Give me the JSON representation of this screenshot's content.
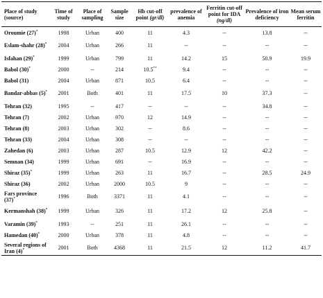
{
  "headers": {
    "place": "Place of study (source)",
    "time": "Time of study",
    "sampling": "Place of sampling",
    "sample": "Sample size",
    "hb_pre": "Hb cut-off point ",
    "hb_unit": "(gr/dl)",
    "anemia": "prevalence of anemia",
    "ferritin_pre": "Ferritin cut-off point for IDA ",
    "ferritin_unit": "(ng/dl)",
    "iron": "Prevalence of iron deficiency",
    "serum": "Mean serum ferritin"
  },
  "rows": [
    {
      "place": "Oroumie (27)",
      "sup": "*",
      "time": "1998",
      "sampling": "Urban",
      "sample": "400",
      "hb": "11",
      "hb_sup": "",
      "anemia": "4.3",
      "ferritin": "--",
      "iron": "13.8",
      "serum": "--"
    },
    {
      "place": "Eslam-shahr (28)",
      "sup": "*",
      "time": "2004",
      "sampling": "Urban",
      "sample": "266",
      "hb": "11",
      "hb_sup": "",
      "anemia": "--",
      "ferritin": "--",
      "iron": "--",
      "serum": "--"
    },
    {
      "place": "Isfahan (29)",
      "sup": "*",
      "time": "1999",
      "sampling": "Urban",
      "sample": "799",
      "hb": "11",
      "hb_sup": "",
      "anemia": "14.2",
      "ferritin": "15",
      "iron": "50.9",
      "serum": "19.9"
    },
    {
      "place": "Babol (30)",
      "sup": "*",
      "time": "2000",
      "sampling": "--",
      "sample": "214",
      "hb": "10.5",
      "hb_sup": "**",
      "anemia": "9.4",
      "ferritin": "--",
      "iron": "--",
      "serum": "--"
    },
    {
      "place": "Babol (31)",
      "sup": "",
      "time": "2004",
      "sampling": "Urban",
      "sample": "871",
      "hb": "10.5",
      "hb_sup": "",
      "anemia": "6.4",
      "ferritin": "--",
      "iron": "--",
      "serum": "--"
    },
    {
      "place": "Bandar-abbas (5)",
      "sup": "*",
      "time": "2001",
      "sampling": "Both",
      "sample": "401",
      "hb": "11",
      "hb_sup": "",
      "anemia": "17.5",
      "ferritin": "10",
      "iron": "37.3",
      "serum": "--"
    },
    {
      "place": "Tehran (32)",
      "sup": "",
      "time": "1995",
      "sampling": "--",
      "sample": "417",
      "hb": "--",
      "hb_sup": "",
      "anemia": "--",
      "ferritin": "--",
      "iron": "34.8",
      "serum": "--"
    },
    {
      "place": "Tehran (7)",
      "sup": "",
      "time": "2002",
      "sampling": "Urban",
      "sample": "970",
      "hb": "12",
      "hb_sup": "",
      "anemia": "14.9",
      "ferritin": "--",
      "iron": "--",
      "serum": "--"
    },
    {
      "place": "Tehran (8)",
      "sup": "",
      "time": "2003",
      "sampling": "Urban",
      "sample": "302",
      "hb": "--",
      "hb_sup": "",
      "anemia": "8.6",
      "ferritin": "--",
      "iron": "--",
      "serum": "--"
    },
    {
      "place": "Tehran (33)",
      "sup": "",
      "time": "2004",
      "sampling": "Urban",
      "sample": "308",
      "hb": "--",
      "hb_sup": "",
      "anemia": "--",
      "ferritin": "--",
      "iron": "--",
      "serum": "--"
    },
    {
      "place": "Zahedan (6)",
      "sup": "",
      "time": "2003",
      "sampling": "Urban",
      "sample": "287",
      "hb": "10.5",
      "hb_sup": "",
      "anemia": "12.9",
      "ferritin": "12",
      "iron": "42.2",
      "serum": "--"
    },
    {
      "place": "Semnan (34)",
      "sup": "",
      "time": "1999",
      "sampling": "Urban",
      "sample": "691",
      "hb": "--",
      "hb_sup": "",
      "anemia": "16.9",
      "ferritin": "--",
      "iron": "--",
      "serum": "--"
    },
    {
      "place": "Shiraz (35)",
      "sup": "*",
      "time": "1999",
      "sampling": "Urban",
      "sample": "263",
      "hb": "11",
      "hb_sup": "",
      "anemia": "16.7",
      "ferritin": "--",
      "iron": "28.5",
      "serum": "24.9"
    },
    {
      "place": "Shiraz (36)",
      "sup": "",
      "time": "2002",
      "sampling": "Urban",
      "sample": "2000",
      "hb": "10.5",
      "hb_sup": "",
      "anemia": "9",
      "ferritin": "--",
      "iron": "--",
      "serum": "--"
    },
    {
      "place": "Fars province (37)",
      "sup": "*",
      "time": "1996",
      "sampling": "Both",
      "sample": "3371",
      "hb": "11",
      "hb_sup": "",
      "anemia": "4.1",
      "ferritin": "--",
      "iron": "--",
      "serum": "--"
    },
    {
      "place": "Kermanshah (38)",
      "sup": "*",
      "time": "1999",
      "sampling": "Urban",
      "sample": "326",
      "hb": "11",
      "hb_sup": "",
      "anemia": "17.2",
      "ferritin": "12",
      "iron": "25.8",
      "serum": "--"
    },
    {
      "place": "Varamin (39)",
      "sup": "*",
      "time": "1993",
      "sampling": "--",
      "sample": "251",
      "hb": "11",
      "hb_sup": "",
      "anemia": "26.1",
      "ferritin": "--",
      "iron": "--",
      "serum": "--"
    },
    {
      "place": "Hamedan (40)",
      "sup": "*",
      "time": "2000",
      "sampling": "Urban",
      "sample": "378",
      "hb": "11",
      "hb_sup": "",
      "anemia": "4.8",
      "ferritin": "--",
      "iron": "--",
      "serum": "--"
    },
    {
      "place": "Several regions of Iran (4)",
      "sup": "*",
      "time": "2001",
      "sampling": "Both",
      "sample": "4368",
      "hb": "11",
      "hb_sup": "",
      "anemia": "21.5",
      "ferritin": "12",
      "iron": "11.2",
      "serum": "41.7"
    }
  ]
}
